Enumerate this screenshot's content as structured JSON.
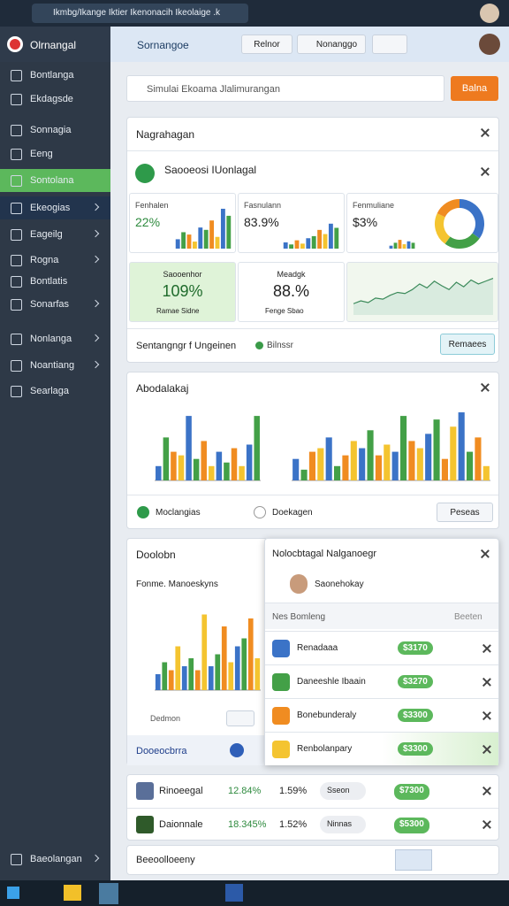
{
  "browser": {
    "tab": "Ikmbg/Ikange Iktier Ikenonacih Ikeolaige .k"
  },
  "app": {
    "name": "Olrnangal",
    "section": "Sornangoe",
    "buttons": [
      "Relnor",
      "Nonanggo"
    ]
  },
  "sidebar": {
    "items": [
      "Bontlanga",
      "Ekdagsde",
      "Sonnagia",
      "Eeng",
      "Sontolana",
      "Ekeogias",
      "Eageilg",
      "Rogna",
      "Bontlatis",
      "Sonarfas",
      "Nonlanga",
      "Noantiang",
      "Searlaga"
    ],
    "footer": "Baeolangan"
  },
  "search": {
    "placeholder": "Simulai Ekoama Jlalimurangan",
    "button": "Balna"
  },
  "palette": [
    "#3b73c7",
    "#43a047",
    "#f08c21",
    "#f4c430"
  ],
  "panel1": {
    "title": "Nagrahagan",
    "subtitle": "Saooeosi IUonlagal",
    "stats": [
      {
        "label": "Fenhalen",
        "value": "22%",
        "ylim": [
          0,
          100
        ],
        "bars": [
          20,
          35,
          30,
          15,
          45,
          40,
          60,
          25,
          85,
          70
        ]
      },
      {
        "label": "Fasnulann",
        "value": "83.9%",
        "ylim": [
          0,
          100
        ],
        "bars": [
          15,
          10,
          20,
          12,
          25,
          30,
          45,
          35,
          60,
          50
        ]
      },
      {
        "label": "Fenmuliane",
        "value": "$3%",
        "ylim": [
          0,
          100
        ],
        "bars": [
          10,
          20,
          30,
          15,
          25,
          20
        ],
        "donut": [
          35,
          25,
          22,
          18
        ]
      }
    ],
    "highlights": [
      {
        "label": "Saooenhor",
        "value": "109%",
        "note": "Ramae Sidne"
      },
      {
        "label": "Meadgk",
        "value": "88.%",
        "note": "Fenge Sbao"
      }
    ],
    "trend": {
      "ylim": [
        0,
        80
      ],
      "values": [
        20,
        25,
        22,
        30,
        28,
        35,
        40,
        38,
        45,
        55,
        48,
        60,
        52,
        45,
        58,
        50,
        62,
        55,
        60,
        65
      ]
    },
    "status": {
      "text": "Sentangngr  f  Ungeinen",
      "tag": "Bilnssr",
      "button": "Remaees"
    }
  },
  "panel2": {
    "title": "Abodalakaj",
    "charts": [
      {
        "ylim": [
          0,
          100
        ],
        "bars": [
          20,
          60,
          40,
          35,
          90,
          30,
          55,
          20,
          40,
          25,
          45,
          20,
          50,
          90
        ]
      },
      {
        "ylim": [
          0,
          100
        ],
        "bars": [
          30,
          15,
          40,
          45,
          60,
          20,
          35,
          55,
          45,
          70,
          35,
          50,
          40,
          90,
          55,
          45,
          65,
          85,
          30,
          75,
          95,
          40,
          60,
          20
        ]
      }
    ],
    "footer": [
      "Moclangias",
      "Doekagen"
    ],
    "button": "Peseas"
  },
  "panel3": {
    "title": "Doolobn",
    "subtitle": "Fonme. Manoeskyns",
    "chart": {
      "ylim": [
        0,
        100
      ],
      "bars": [
        20,
        35,
        25,
        55,
        30,
        40,
        25,
        95,
        30,
        45,
        80,
        35,
        55,
        65,
        90,
        40
      ]
    },
    "button": "Dedmon",
    "footer": "Dooeocbrra"
  },
  "overlay": {
    "title": "Nolocbtagal Nalganoegr",
    "user": "Saonehokay",
    "columns": [
      "Nes Bomleng",
      "Beeten"
    ],
    "items": [
      {
        "name": "Renadaaa",
        "price": "$3170"
      },
      {
        "name": "Daneeshle Ibaain",
        "price": "$3270"
      },
      {
        "name": "Bonebunderaly",
        "price": "$3300"
      },
      {
        "name": "Renbolanpary",
        "price": "$3300"
      }
    ]
  },
  "table": {
    "rows": [
      [
        "Rinoeegal",
        "12.84%",
        "1.59%",
        "Sseon",
        "$7300"
      ],
      [
        "Daionnale",
        "18.345%",
        "1.52%",
        "Ninnas",
        "$5300"
      ]
    ]
  },
  "bottom": {
    "title": "Beeoolloeeny"
  }
}
